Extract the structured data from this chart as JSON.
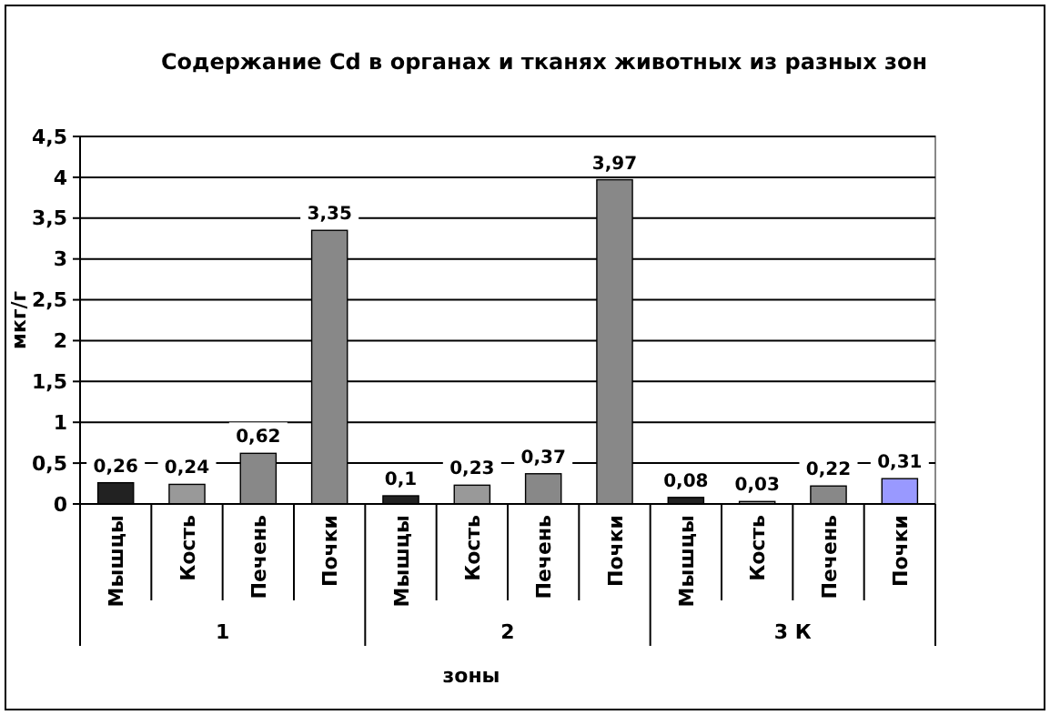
{
  "chart_data": {
    "type": "bar",
    "title": "Содержание Cd в органах и тканях животных из разных зон",
    "xlabel": "зоны",
    "ylabel": "мкг/г",
    "categories": [
      "Мышцы",
      "Кость",
      "Печень",
      "Почки",
      "Мышцы",
      "Кость",
      "Печень",
      "Почки",
      "Мышцы",
      "Кость",
      "Печень",
      "Почки"
    ],
    "values": [
      0.26,
      0.24,
      0.62,
      3.35,
      0.1,
      0.23,
      0.37,
      3.97,
      0.08,
      0.03,
      0.22,
      0.31
    ],
    "value_labels": [
      "0,26",
      "0,24",
      "0,62",
      "3,35",
      "0,1",
      "0,23",
      "0,37",
      "3,97",
      "0,08",
      "0,03",
      "0,22",
      "0,31"
    ],
    "colors": [
      "#222222",
      "#999999",
      "#888888",
      "#888888",
      "#222222",
      "#999999",
      "#888888",
      "#888888",
      "#222222",
      "#999999",
      "#888888",
      "#9999ff"
    ],
    "annotations": [
      "1",
      "2",
      "3 К"
    ],
    "ylim": [
      0,
      4.5
    ],
    "yticks": [
      0,
      {
        "value": 0.5,
        "label": "0,5"
      },
      1,
      {
        "value": 1.5,
        "label": "1,5"
      },
      2,
      {
        "value": 2.5,
        "label": "2,5"
      },
      3,
      {
        "value": 3.5,
        "label": "3,5"
      },
      4,
      {
        "value": 4.5,
        "label": "4,5"
      }
    ],
    "grid": "y"
  }
}
